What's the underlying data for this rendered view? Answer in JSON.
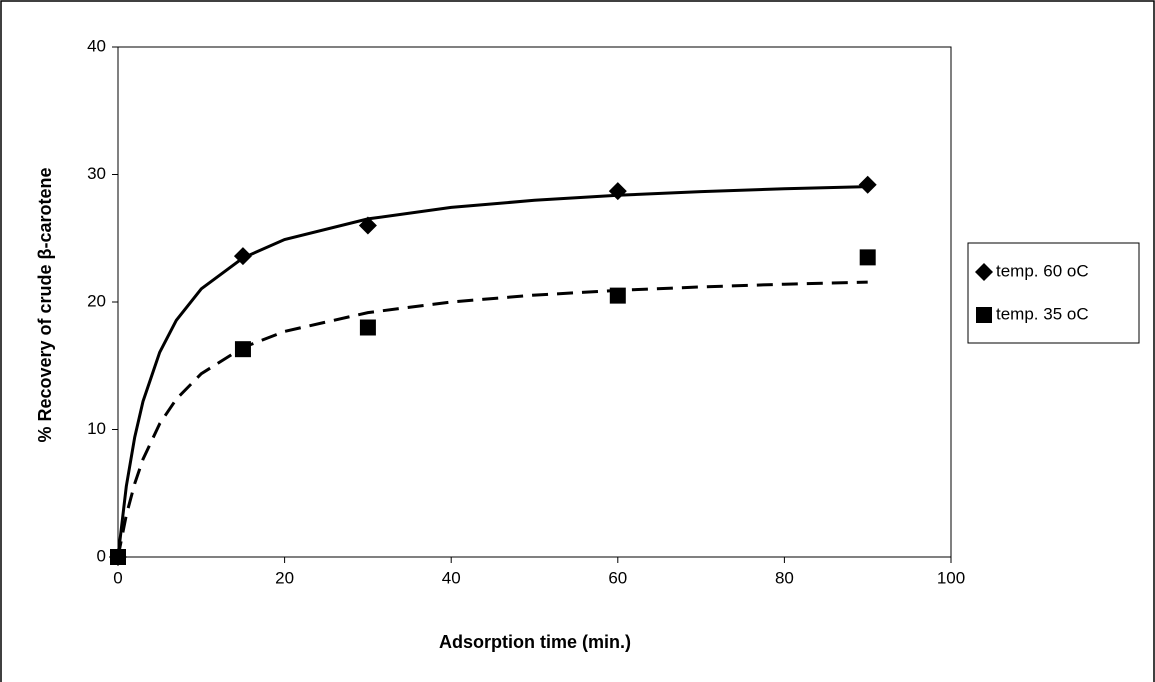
{
  "chart_data": {
    "type": "scatter",
    "x_label": "Adsorption time (min.)",
    "y_label": "% Recovery of crude β-carotene",
    "series": [
      {
        "name": "temp. 60 oC",
        "color": "#000000",
        "marker": "diamond",
        "x": [
          0,
          15,
          30,
          60,
          90
        ],
        "values": [
          0,
          23.6,
          26,
          28.7,
          29.2
        ]
      },
      {
        "name": "temp. 35 oC",
        "color": "#000000",
        "marker": "square",
        "x": [
          0,
          15,
          30,
          60,
          90
        ],
        "values": [
          0,
          16.3,
          18,
          20.5,
          23.5
        ]
      }
    ],
    "xlim": [
      0,
      100
    ],
    "xticks": [
      0,
      20,
      40,
      60,
      80,
      100
    ],
    "ylim": [
      0,
      40
    ],
    "yticks": [
      0,
      10,
      20,
      30,
      40
    ],
    "grid": false,
    "legend": "right"
  }
}
